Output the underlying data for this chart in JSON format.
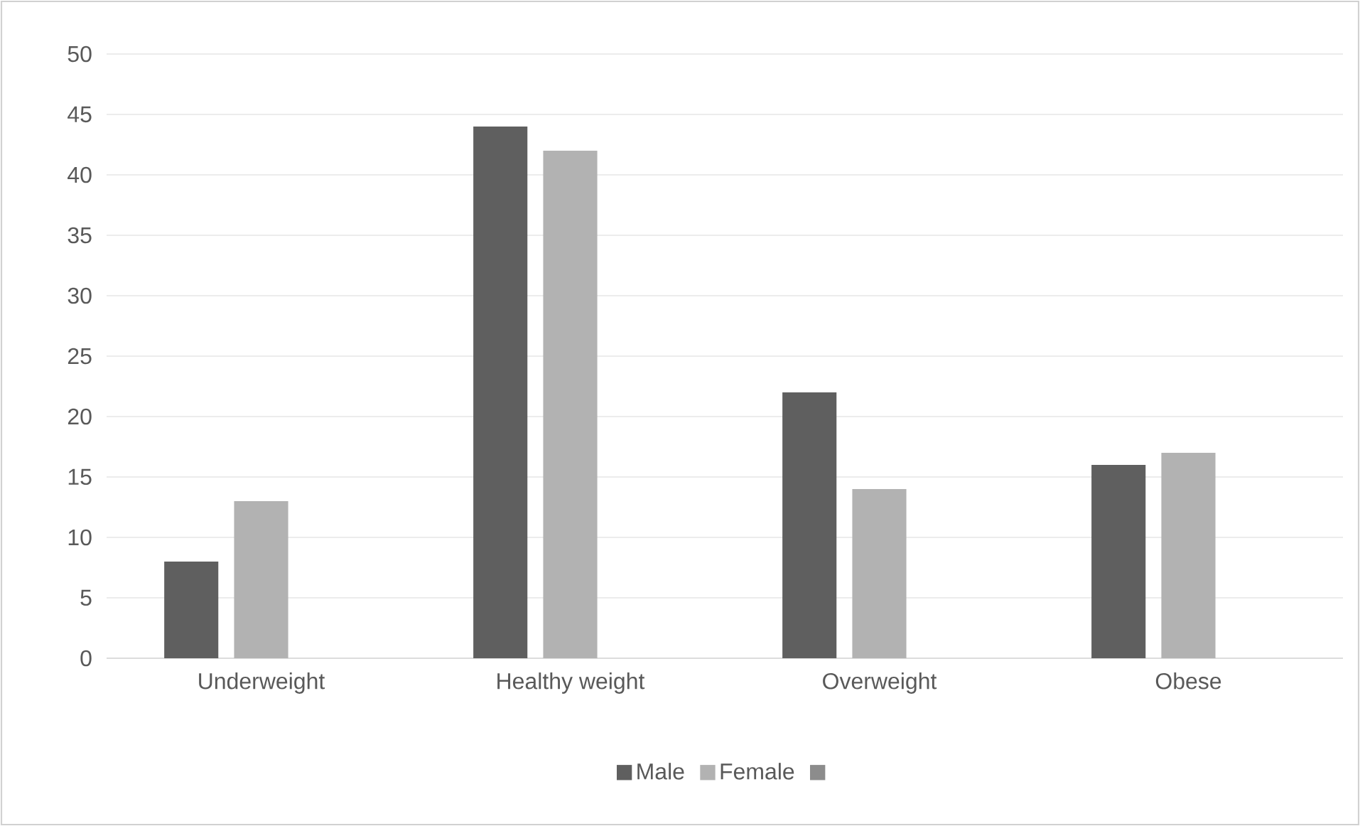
{
  "chart_data": {
    "type": "bar",
    "categories": [
      "Underweight",
      "Healthy weight",
      "Overweight",
      "Obese"
    ],
    "series": [
      {
        "name": "Male",
        "color": "#5f5f5f",
        "values": [
          8,
          44,
          22,
          16
        ]
      },
      {
        "name": "Female",
        "color": "#b2b2b2",
        "values": [
          13,
          42,
          14,
          17
        ]
      },
      {
        "color": "#8c8c8c",
        "values": [
          null,
          null,
          null,
          null
        ]
      }
    ],
    "ylim": [
      0,
      50
    ],
    "yticks": [
      0,
      5,
      10,
      15,
      20,
      25,
      30,
      35,
      40,
      45,
      50
    ],
    "grid": "y",
    "legend": "bottom"
  }
}
